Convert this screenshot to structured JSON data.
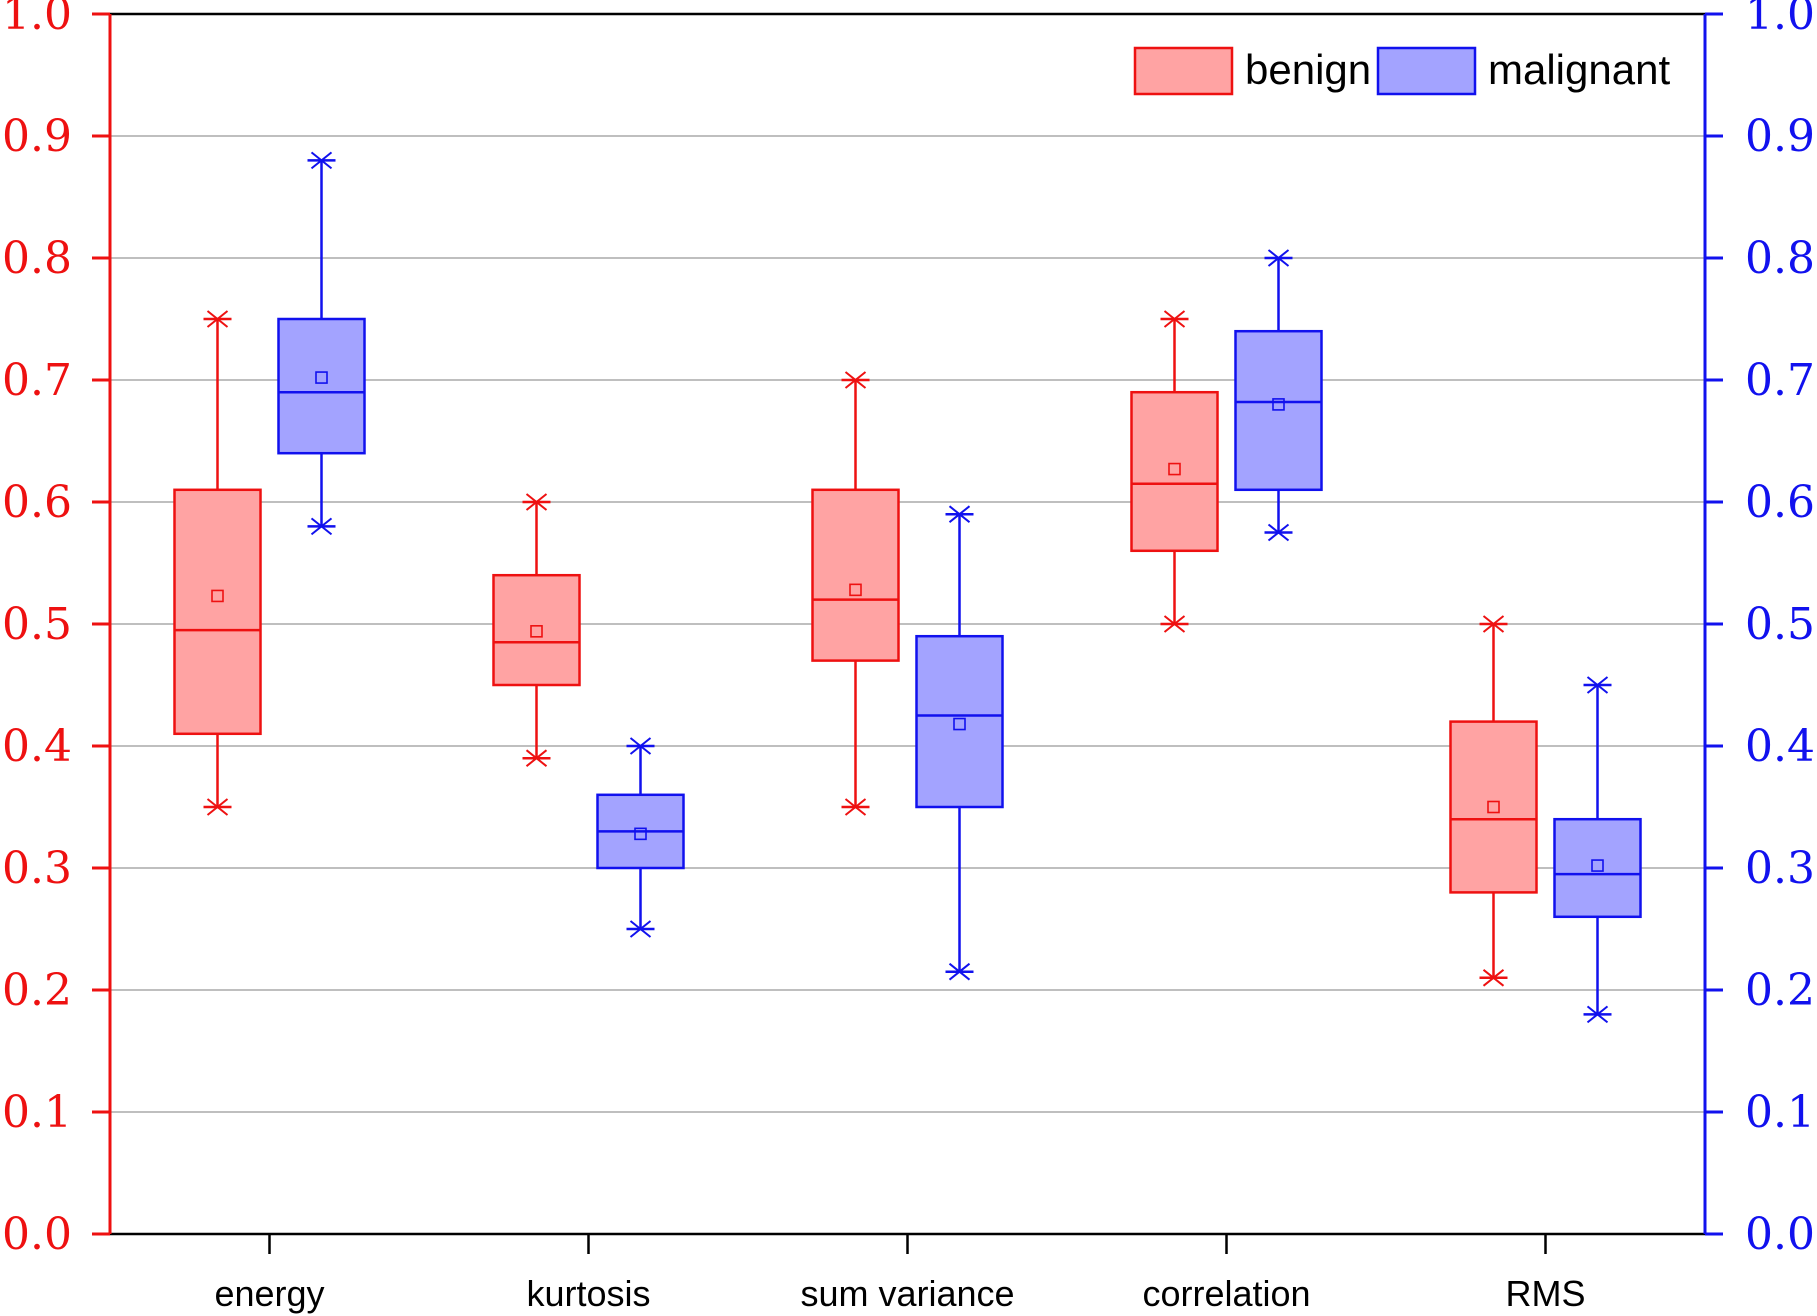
{
  "chart_data": {
    "type": "box",
    "title": "",
    "xlabel": "",
    "ylabel": "",
    "ylim": [
      0.0,
      1.0
    ],
    "yticks": [
      "0.0",
      "0.1",
      "0.2",
      "0.3",
      "0.4",
      "0.5",
      "0.6",
      "0.7",
      "0.8",
      "0.9",
      "1.0"
    ],
    "y_right_ticks": [
      "0.0",
      "0.1",
      "0.2",
      "0.3",
      "0.4",
      "0.5",
      "0.6",
      "0.7",
      "0.8",
      "0.9",
      "1.0"
    ],
    "grid": true,
    "categories": [
      "energy",
      "kurtosis",
      "sum variance",
      "correlation",
      "RMS"
    ],
    "legend_position": "top-right",
    "series": [
      {
        "name": "benign",
        "edge_color": "#ee1111",
        "fill_color": "#ffa3a3",
        "boxes": [
          {
            "whisker_low": 0.35,
            "q1": 0.41,
            "median": 0.495,
            "q3": 0.61,
            "whisker_high": 0.75,
            "mean": 0.523
          },
          {
            "whisker_low": 0.39,
            "q1": 0.45,
            "median": 0.485,
            "q3": 0.54,
            "whisker_high": 0.6,
            "mean": 0.494
          },
          {
            "whisker_low": 0.35,
            "q1": 0.47,
            "median": 0.52,
            "q3": 0.61,
            "whisker_high": 0.7,
            "mean": 0.528
          },
          {
            "whisker_low": 0.5,
            "q1": 0.56,
            "median": 0.615,
            "q3": 0.69,
            "whisker_high": 0.75,
            "mean": 0.627
          },
          {
            "whisker_low": 0.21,
            "q1": 0.28,
            "median": 0.34,
            "q3": 0.42,
            "whisker_high": 0.5,
            "mean": 0.35
          }
        ]
      },
      {
        "name": "malignant",
        "edge_color": "#1111ee",
        "fill_color": "#a3a3ff",
        "boxes": [
          {
            "whisker_low": 0.58,
            "q1": 0.64,
            "median": 0.69,
            "q3": 0.75,
            "whisker_high": 0.88,
            "mean": 0.702
          },
          {
            "whisker_low": 0.25,
            "q1": 0.3,
            "median": 0.33,
            "q3": 0.36,
            "whisker_high": 0.4,
            "mean": 0.328
          },
          {
            "whisker_low": 0.215,
            "q1": 0.35,
            "median": 0.425,
            "q3": 0.49,
            "whisker_high": 0.59,
            "mean": 0.418
          },
          {
            "whisker_low": 0.575,
            "q1": 0.61,
            "median": 0.682,
            "q3": 0.74,
            "whisker_high": 0.8,
            "mean": 0.68
          },
          {
            "whisker_low": 0.18,
            "q1": 0.26,
            "median": 0.295,
            "q3": 0.34,
            "whisker_high": 0.45,
            "mean": 0.302
          }
        ]
      }
    ],
    "axis_colors": {
      "left": "#ee1111",
      "right": "#1111ee",
      "frame": "#000000",
      "grid": "#999999"
    }
  }
}
